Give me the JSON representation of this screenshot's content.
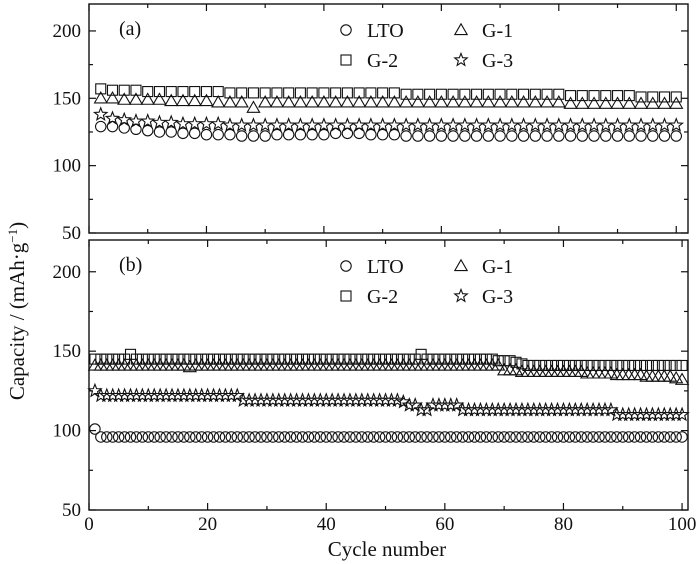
{
  "figure": {
    "ylabel": "Capacity / (mAh·g⁻¹)",
    "ylabel_sup": "−1",
    "xlabel": "Cycle number"
  },
  "chart_data": [
    {
      "type": "scatter",
      "panel_label": "(a)",
      "xlabel": "Cycle number",
      "ylabel": "Capacity / (mAh·g⁻¹)",
      "xlim": [
        0,
        51
      ],
      "ylim": [
        50,
        220
      ],
      "xticks": [
        0,
        10,
        20,
        30,
        40,
        50
      ],
      "yticks": [
        50,
        100,
        150,
        200
      ],
      "grid": false,
      "legend_placement": "top-right",
      "legend_order": [
        0,
        1,
        2,
        3
      ],
      "series": [
        {
          "name": "LTO",
          "marker": "circle",
          "x_start": 1,
          "x_step": 1,
          "values": [
            129,
            129,
            128,
            127,
            126,
            125,
            125,
            124,
            124,
            123,
            123,
            123,
            122,
            122,
            122,
            123,
            123,
            123,
            123,
            123,
            124,
            124,
            124,
            123,
            123,
            123,
            122,
            122,
            122,
            122,
            122,
            122,
            122,
            122,
            122,
            122,
            122,
            122,
            122,
            122,
            122,
            122,
            122,
            122,
            122,
            122,
            122,
            122,
            122,
            122
          ]
        },
        {
          "name": "G-1",
          "marker": "triangle",
          "x_start": 1,
          "x_step": 1,
          "values": [
            150,
            150,
            149,
            149,
            149,
            149,
            148,
            148,
            148,
            148,
            147,
            147,
            147,
            143,
            147,
            147,
            147,
            147,
            147,
            147,
            147,
            147,
            147,
            147,
            147,
            147,
            147,
            147,
            147,
            147,
            147,
            147,
            147,
            147,
            147,
            147,
            147,
            147,
            147,
            147,
            146,
            146,
            146,
            146,
            146,
            146,
            146,
            146,
            146,
            146
          ]
        },
        {
          "name": "G-2",
          "marker": "square",
          "x_start": 1,
          "x_step": 1,
          "values": [
            157,
            156,
            156,
            156,
            155,
            155,
            155,
            155,
            155,
            155,
            155,
            154,
            154,
            154,
            154,
            154,
            154,
            154,
            154,
            154,
            154,
            154,
            154,
            154,
            154,
            154,
            153,
            153,
            153,
            153,
            153,
            153,
            153,
            153,
            153,
            153,
            153,
            153,
            153,
            153,
            152,
            152,
            152,
            152,
            152,
            152,
            151,
            151,
            151,
            151
          ]
        },
        {
          "name": "G-3",
          "marker": "star",
          "x_start": 1,
          "x_step": 1,
          "values": [
            138,
            135,
            134,
            133,
            133,
            132,
            132,
            131,
            131,
            131,
            131,
            130,
            130,
            130,
            130,
            130,
            130,
            130,
            130,
            130,
            130,
            130,
            130,
            130,
            130,
            130,
            130,
            130,
            130,
            130,
            130,
            130,
            130,
            130,
            130,
            130,
            130,
            130,
            130,
            130,
            130,
            130,
            130,
            130,
            130,
            130,
            130,
            130,
            130,
            130
          ]
        }
      ]
    },
    {
      "type": "scatter",
      "panel_label": "(b)",
      "xlabel": "Cycle number",
      "ylabel": "Capacity / (mAh·g⁻¹)",
      "xlim": [
        0,
        101
      ],
      "ylim": [
        50,
        220
      ],
      "xticks": [
        0,
        20,
        40,
        60,
        80,
        100
      ],
      "yticks": [
        50,
        100,
        150,
        200
      ],
      "grid": false,
      "legend_placement": "top-right",
      "legend_order": [
        0,
        1,
        2,
        3
      ],
      "series": [
        {
          "name": "LTO",
          "marker": "circle",
          "x_start": 1,
          "x_step": 1,
          "values": [
            101,
            96,
            96,
            96,
            96,
            96,
            96,
            96,
            96,
            96,
            96,
            96,
            96,
            96,
            96,
            96,
            96,
            96,
            96,
            96,
            96,
            96,
            96,
            96,
            96,
            96,
            96,
            96,
            96,
            96,
            96,
            96,
            96,
            96,
            96,
            96,
            96,
            96,
            96,
            96,
            96,
            96,
            96,
            96,
            96,
            96,
            96,
            96,
            96,
            96,
            96,
            96,
            96,
            96,
            96,
            96,
            96,
            96,
            96,
            96,
            96,
            96,
            96,
            96,
            96,
            96,
            96,
            96,
            96,
            96,
            96,
            96,
            96,
            96,
            96,
            96,
            96,
            96,
            96,
            96,
            96,
            96,
            96,
            96,
            96,
            96,
            96,
            96,
            96,
            96,
            96,
            96,
            96,
            96,
            96,
            96,
            96,
            96,
            96,
            96
          ]
        },
        {
          "name": "G-1",
          "marker": "triangle",
          "x_start": 1,
          "x_step": 1,
          "values": [
            141,
            141,
            141,
            141,
            141,
            141,
            141,
            141,
            141,
            141,
            141,
            141,
            141,
            141,
            141,
            141,
            140,
            141,
            141,
            141,
            141,
            141,
            141,
            141,
            141,
            141,
            141,
            141,
            141,
            141,
            141,
            141,
            141,
            141,
            141,
            141,
            141,
            141,
            141,
            141,
            141,
            141,
            141,
            141,
            141,
            141,
            141,
            141,
            141,
            141,
            141,
            141,
            141,
            141,
            141,
            141,
            141,
            141,
            141,
            141,
            141,
            141,
            141,
            141,
            141,
            141,
            141,
            141,
            141,
            138,
            138,
            138,
            137,
            137,
            137,
            137,
            137,
            137,
            137,
            137,
            137,
            137,
            137,
            136,
            136,
            136,
            136,
            136,
            135,
            135,
            135,
            135,
            135,
            134,
            134,
            134,
            134,
            134,
            133,
            132
          ]
        },
        {
          "name": "G-2",
          "marker": "square",
          "x_start": 1,
          "x_step": 1,
          "values": [
            145,
            145,
            145,
            145,
            145,
            145,
            148,
            145,
            145,
            145,
            145,
            145,
            145,
            145,
            145,
            145,
            145,
            145,
            145,
            145,
            145,
            145,
            145,
            145,
            145,
            145,
            145,
            145,
            145,
            145,
            145,
            145,
            145,
            145,
            145,
            145,
            145,
            145,
            145,
            145,
            145,
            145,
            145,
            145,
            145,
            145,
            145,
            145,
            145,
            145,
            145,
            145,
            145,
            145,
            145,
            148,
            145,
            145,
            145,
            145,
            145,
            145,
            145,
            145,
            145,
            145,
            145,
            145,
            144,
            144,
            144,
            143,
            142,
            141,
            141,
            141,
            141,
            141,
            141,
            141,
            141,
            141,
            141,
            141,
            141,
            141,
            141,
            141,
            141,
            141,
            141,
            141,
            141,
            141,
            141,
            141,
            141,
            141,
            141,
            141
          ]
        },
        {
          "name": "G-3",
          "marker": "star",
          "x_start": 1,
          "x_step": 1,
          "values": [
            125,
            122,
            122,
            122,
            122,
            122,
            122,
            122,
            122,
            122,
            122,
            122,
            122,
            122,
            122,
            122,
            122,
            122,
            122,
            122,
            122,
            122,
            122,
            122,
            122,
            119,
            119,
            119,
            119,
            119,
            119,
            119,
            119,
            119,
            119,
            119,
            119,
            119,
            119,
            119,
            119,
            119,
            119,
            119,
            119,
            119,
            119,
            119,
            119,
            119,
            119,
            119,
            118,
            116,
            116,
            113,
            113,
            116,
            116,
            116,
            116,
            116,
            113,
            113,
            113,
            113,
            113,
            113,
            113,
            113,
            113,
            113,
            113,
            113,
            113,
            113,
            113,
            113,
            113,
            113,
            113,
            113,
            113,
            113,
            113,
            113,
            113,
            113,
            110,
            110,
            110,
            110,
            110,
            110,
            110,
            110,
            110,
            110,
            110,
            110
          ]
        }
      ]
    }
  ]
}
